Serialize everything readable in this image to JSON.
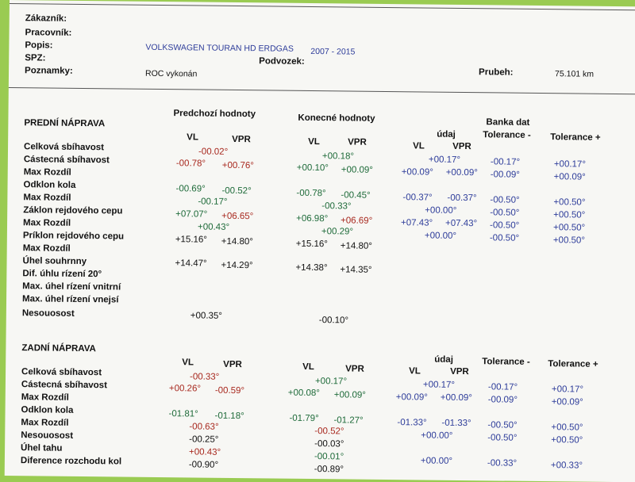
{
  "header": {
    "zakaznik_label": "Zákazník:",
    "pracovnik_label": "Pracovník:",
    "popis_label": "Popis:",
    "spz_label": "SPZ:",
    "poznamky_label": "Poznamky:",
    "vehicle": "VOLKSWAGEN TOURAN HD ERDGAS",
    "years": "2007 - 2015",
    "podvozek_label": "Podvozek:",
    "prubeh_label": "Prubeh:",
    "prubeh_value": "75.101 km",
    "poznamky_value": "ROC vykonán"
  },
  "front": {
    "title": "PREDNÍ NÁPRAVA",
    "prev_header": "Predchozí hodnoty",
    "final_header": "Konecné hodnoty",
    "bank_header": "Banka dat",
    "udaj": "údaj",
    "tol_minus": "Tolerance -",
    "tol_plus": "Tolerance +",
    "vl": "VL",
    "vpr": "VPR",
    "rows": [
      "Celková sbíhavost",
      "Cástecná sbíhavost",
      "Max Rozdíl",
      "Odklon kola",
      "Max Rozdíl",
      "Záklon rejdového cepu",
      "Max Rozdíl",
      "Príklon rejdového cepu",
      "Max Rozdíl",
      "Úhel souhrnny",
      "Dif. úhlu rízení 20°",
      "Max. úhel rízení vnitrní",
      "Max. úhel rízení vnejsí",
      "Nesouosost"
    ],
    "prev": {
      "celkova": "-00.02°",
      "castecna_vl": "-00.78°",
      "castecna_vpr": "+00.76°",
      "odklon_vl": "-00.69°",
      "odklon_vpr": "-00.52°",
      "odklon_max": "-00.17°",
      "zaklon_vl": "+07.07°",
      "zaklon_vpr": "+06.65°",
      "zaklon_max": "+00.43°",
      "priklon_vl": "+15.16°",
      "priklon_vpr": "+14.80°",
      "uhel_vl": "+14.47°",
      "uhel_vpr": "+14.29°",
      "nesouosost": "+00.35°"
    },
    "final": {
      "celkova": "+00.18°",
      "castecna_vl": "+00.10°",
      "castecna_vpr": "+00.09°",
      "odklon_vl": "-00.78°",
      "odklon_vpr": "-00.45°",
      "odklon_max": "-00.33°",
      "zaklon_vl": "+06.98°",
      "zaklon_vpr": "+06.69°",
      "zaklon_max": "+00.29°",
      "priklon_vl": "+15.16°",
      "priklon_vpr": "+14.80°",
      "uhel_vl": "+14.38°",
      "uhel_vpr": "+14.35°",
      "nesouosost": "-00.10°"
    },
    "bank": {
      "celkova": "+00.17°",
      "castecna_vl": "+00.09°",
      "castecna_vpr": "+00.09°",
      "odklon_vl": "-00.37°",
      "odklon_vpr": "-00.37°",
      "odklon_max": "+00.00°",
      "zaklon_vl": "+07.43°",
      "zaklon_vpr": "+07.43°",
      "priklon": "+00.00°"
    },
    "tol_minus_vals": [
      "-00.17°",
      "-00.09°",
      "-00.50°",
      "-00.50°",
      "-00.50°",
      "-00.50°"
    ],
    "tol_plus_vals": [
      "+00.17°",
      "+00.09°",
      "+00.50°",
      "+00.50°",
      "+00.50°",
      "+00.50°"
    ]
  },
  "rear": {
    "title": "ZADNÍ NÁPRAVA",
    "udaj": "údaj",
    "tol_minus": "Tolerance -",
    "tol_plus": "Tolerance +",
    "vl": "VL",
    "vpr": "VPR",
    "rows": [
      "Celková sbíhavost",
      "Cástecná sbíhavost",
      "Max Rozdíl",
      "Odklon kola",
      "Max Rozdíl",
      "Nesouosost",
      "Úhel tahu",
      "Diference rozchodu kol"
    ],
    "prev": {
      "celkova": "-00.33°",
      "castecna_vl": "+00.26°",
      "castecna_vpr": "-00.59°",
      "odklon_vl": "-01.81°",
      "odklon_vpr": "-01.18°",
      "odklon_max": "-00.63°",
      "nesouosost": "-00.25°",
      "uhel_tahu": "+00.43°",
      "diference": "-00.90°"
    },
    "final": {
      "celkova": "+00.17°",
      "castecna_vl": "+00.08°",
      "castecna_vpr": "+00.09°",
      "odklon_vl": "-01.79°",
      "odklon_vpr": "-01.27°",
      "odklon_max": "-00.52°",
      "nesouosost": "-00.03°",
      "uhel_tahu": "-00.01°",
      "diference": "-00.89°"
    },
    "bank": {
      "celkova": "+00.17°",
      "castecna_vl": "+00.09°",
      "castecna_vpr": "+00.09°",
      "odklon_vl": "-01.33°",
      "odklon_vpr": "-01.33°",
      "odklon_max": "+00.00°",
      "diference": "+00.00°"
    },
    "tol_minus_vals": [
      "-00.17°",
      "-00.09°",
      "-00.50°",
      "-00.50°",
      "-00.33°"
    ],
    "tol_plus_vals": [
      "+00.17°",
      "+00.09°",
      "+00.50°",
      "+00.50°",
      "+00.33°"
    ]
  }
}
